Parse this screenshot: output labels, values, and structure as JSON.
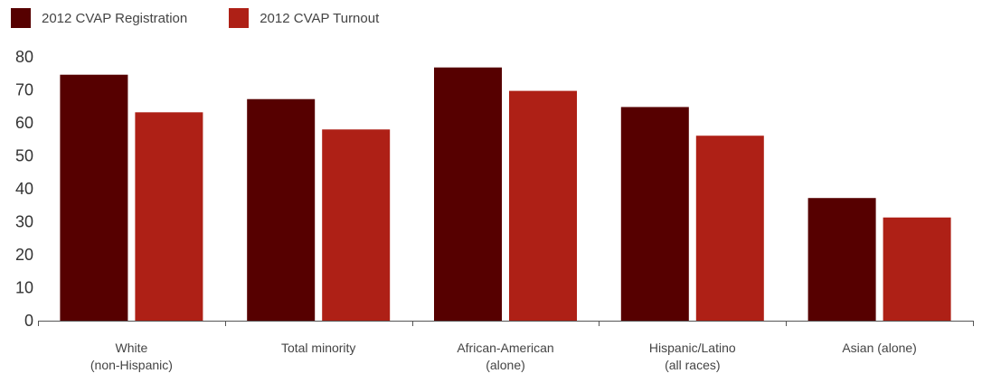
{
  "chart_data": {
    "type": "bar",
    "categories": [
      [
        "White",
        "(non-Hispanic)"
      ],
      [
        "Total minority"
      ],
      [
        "African-American",
        "(alone)"
      ],
      [
        "Hispanic/Latino",
        "(all races)"
      ],
      [
        "Asian (alone)"
      ]
    ],
    "series": [
      {
        "name": "2012 CVAP Registration",
        "color": "#560000",
        "values": [
          74.6,
          67.2,
          76.8,
          64.8,
          37.2
        ]
      },
      {
        "name": "2012 CVAP Turnout",
        "color": "#ae2016",
        "values": [
          63.2,
          58.0,
          69.7,
          56.1,
          31.3
        ]
      }
    ],
    "yticks": [
      0,
      10,
      20,
      30,
      40,
      50,
      60,
      70,
      80
    ],
    "ylim": [
      0,
      80
    ],
    "title": "",
    "xlabel": "",
    "ylabel": "",
    "grid": false,
    "legend_position": "top-left"
  }
}
